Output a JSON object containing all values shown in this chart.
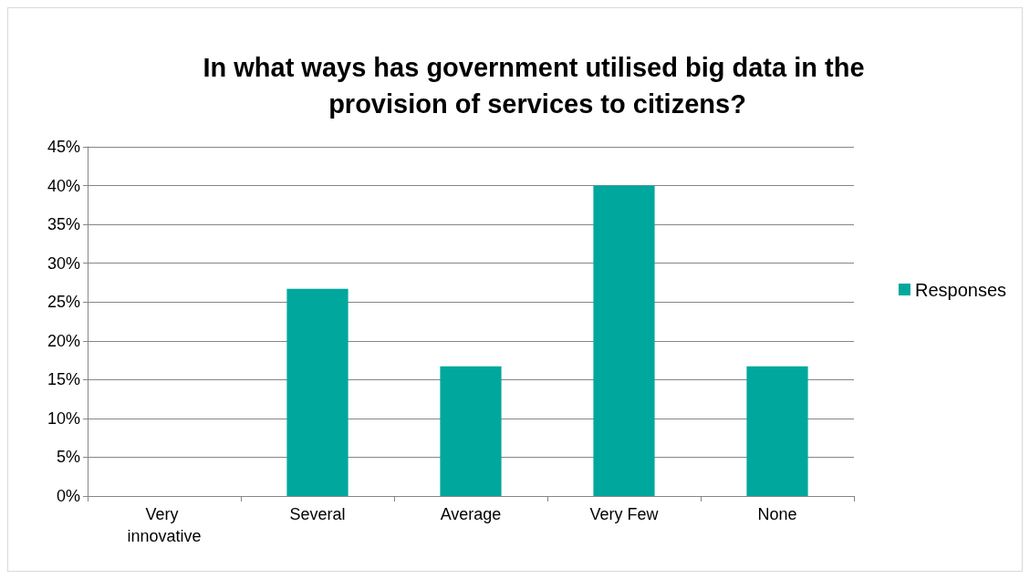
{
  "chart_data": {
    "type": "bar",
    "title": "In what ways has government utilised big data in the provision of services to citizens?",
    "categories": [
      "Very innovative",
      "Several",
      "Average",
      "Very Few",
      "None"
    ],
    "series": [
      {
        "name": "Responses",
        "color": "#00a79d",
        "values": [
          0,
          26.7,
          16.7,
          40,
          16.7
        ]
      }
    ],
    "ylim": [
      0,
      45
    ],
    "yticks": [
      {
        "value": 0,
        "label": "0%"
      },
      {
        "value": 5,
        "label": "5%"
      },
      {
        "value": 10,
        "label": "10%"
      },
      {
        "value": 15,
        "label": "15%"
      },
      {
        "value": 20,
        "label": "20%"
      },
      {
        "value": 25,
        "label": "25%"
      },
      {
        "value": 30,
        "label": "30%"
      },
      {
        "value": 35,
        "label": "35%"
      },
      {
        "value": 40,
        "label": "40%"
      },
      {
        "value": 45,
        "label": "45%"
      }
    ],
    "grid": "y",
    "legend": "right"
  }
}
